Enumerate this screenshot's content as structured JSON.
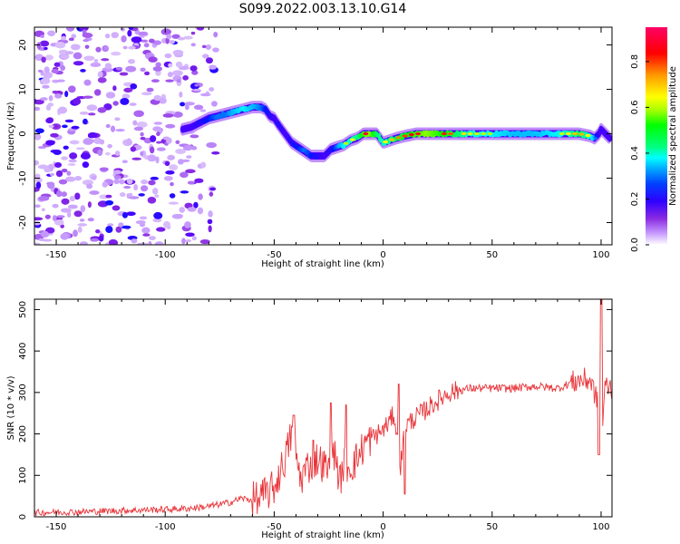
{
  "figure_title": "S099.2022.003.13.10.G14",
  "chart_data": [
    {
      "type": "heatmap",
      "title": "",
      "xlabel": "Height of straight line (km)",
      "ylabel": "Frequency (Hz)",
      "xlim": [
        -160,
        105
      ],
      "ylim": [
        -25,
        24
      ],
      "xticks": [
        -150,
        -100,
        -50,
        0,
        50,
        100
      ],
      "yticks": [
        -20,
        -10,
        0,
        10,
        20
      ],
      "colorbar": {
        "label": "Normalized spectral amplitude",
        "range": [
          0.0,
          0.95
        ],
        "ticks": [
          0.0,
          0.2,
          0.4,
          0.6,
          0.8
        ],
        "colormap": [
          "#e8d8f8",
          "#c9a0ff",
          "#8a2be2",
          "#4b00ff",
          "#0018ff",
          "#00aaff",
          "#00ffff",
          "#00ff80",
          "#00ff00",
          "#aaff00",
          "#ffff00",
          "#ff9900",
          "#ff0000",
          "#ff0066"
        ]
      },
      "ridge": {
        "x": [
          -92,
          -88,
          -84,
          -80,
          -76,
          -72,
          -68,
          -64,
          -60,
          -56,
          -54,
          -52,
          -50,
          -48,
          -45,
          -42,
          -39,
          -36,
          -33,
          -30,
          -27,
          -24,
          -21,
          -18,
          -15,
          -12,
          -9,
          -6,
          -3,
          0,
          3,
          6,
          10,
          15,
          20,
          25,
          30,
          40,
          50,
          60,
          70,
          80,
          90,
          95,
          97,
          99,
          100,
          102,
          104
        ],
        "y": [
          1,
          1.5,
          2.5,
          3.5,
          4,
          4.5,
          5,
          5.5,
          6,
          6,
          5.5,
          4,
          3.5,
          2,
          0,
          -2,
          -3,
          -4,
          -5,
          -5,
          -5,
          -3.5,
          -3,
          -2.5,
          -1.5,
          -1,
          0,
          0,
          0,
          -2,
          -1.5,
          -1,
          -0.5,
          0,
          0,
          0,
          0,
          0,
          0,
          0,
          0,
          0,
          0,
          -0.5,
          -1,
          0,
          1,
          0,
          -1
        ],
        "amplitude": [
          0.3,
          0.3,
          0.35,
          0.4,
          0.45,
          0.45,
          0.5,
          0.55,
          0.5,
          0.45,
          0.4,
          0.35,
          0.3,
          0.35,
          0.3,
          0.35,
          0.4,
          0.45,
          0.4,
          0.35,
          0.3,
          0.35,
          0.45,
          0.55,
          0.6,
          0.65,
          0.8,
          0.85,
          0.7,
          0.6,
          0.65,
          0.7,
          0.75,
          0.8,
          0.85,
          0.8,
          0.75,
          0.6,
          0.55,
          0.5,
          0.5,
          0.55,
          0.7,
          0.6,
          0.5,
          0.3,
          0.3,
          0.3,
          0.3
        ]
      },
      "noise": {
        "x_range": [
          -160,
          -76
        ],
        "level": "scattered low-amplitude blobs"
      }
    },
    {
      "type": "line",
      "title": "",
      "xlabel": "Height of straight line (km)",
      "ylabel": "SNR (10 * v/v)",
      "xlim": [
        -160,
        105
      ],
      "ylim": [
        0,
        525
      ],
      "xticks": [
        -150,
        -100,
        -50,
        0,
        50,
        100
      ],
      "yticks": [
        0,
        100,
        200,
        300,
        400,
        500
      ],
      "color": "#e8353a",
      "series": [
        {
          "x": [
            -160,
            -140,
            -120,
            -100,
            -90,
            -80,
            -75,
            -70,
            -65,
            -60,
            -55,
            -50,
            -45,
            -42,
            -40,
            -38,
            -35,
            -30,
            -25,
            -22,
            -20,
            -18,
            -15,
            -12,
            -10,
            -8,
            -5,
            0,
            3,
            5,
            8,
            10,
            15,
            20,
            25,
            30,
            35,
            40,
            50,
            60,
            70,
            80,
            85,
            90,
            95,
            97,
            99,
            100,
            102,
            105
          ],
          "y": [
            10,
            12,
            15,
            18,
            20,
            25,
            30,
            35,
            45,
            40,
            50,
            70,
            140,
            200,
            150,
            90,
            120,
            140,
            110,
            160,
            80,
            130,
            120,
            140,
            160,
            180,
            190,
            210,
            230,
            250,
            120,
            220,
            240,
            260,
            280,
            300,
            305,
            310,
            310,
            310,
            315,
            310,
            320,
            330,
            330,
            300,
            260,
            180,
            320,
            310
          ]
        }
      ],
      "spikes": [
        {
          "x": -41,
          "y": 245
        },
        {
          "x": -32,
          "y": 185
        },
        {
          "x": -24,
          "y": 275
        },
        {
          "x": -17,
          "y": 270
        },
        {
          "x": 7,
          "y": 320
        },
        {
          "x": 10,
          "y": 55
        },
        {
          "x": 100,
          "y": 525
        },
        {
          "x": 99,
          "y": 150
        }
      ]
    }
  ]
}
